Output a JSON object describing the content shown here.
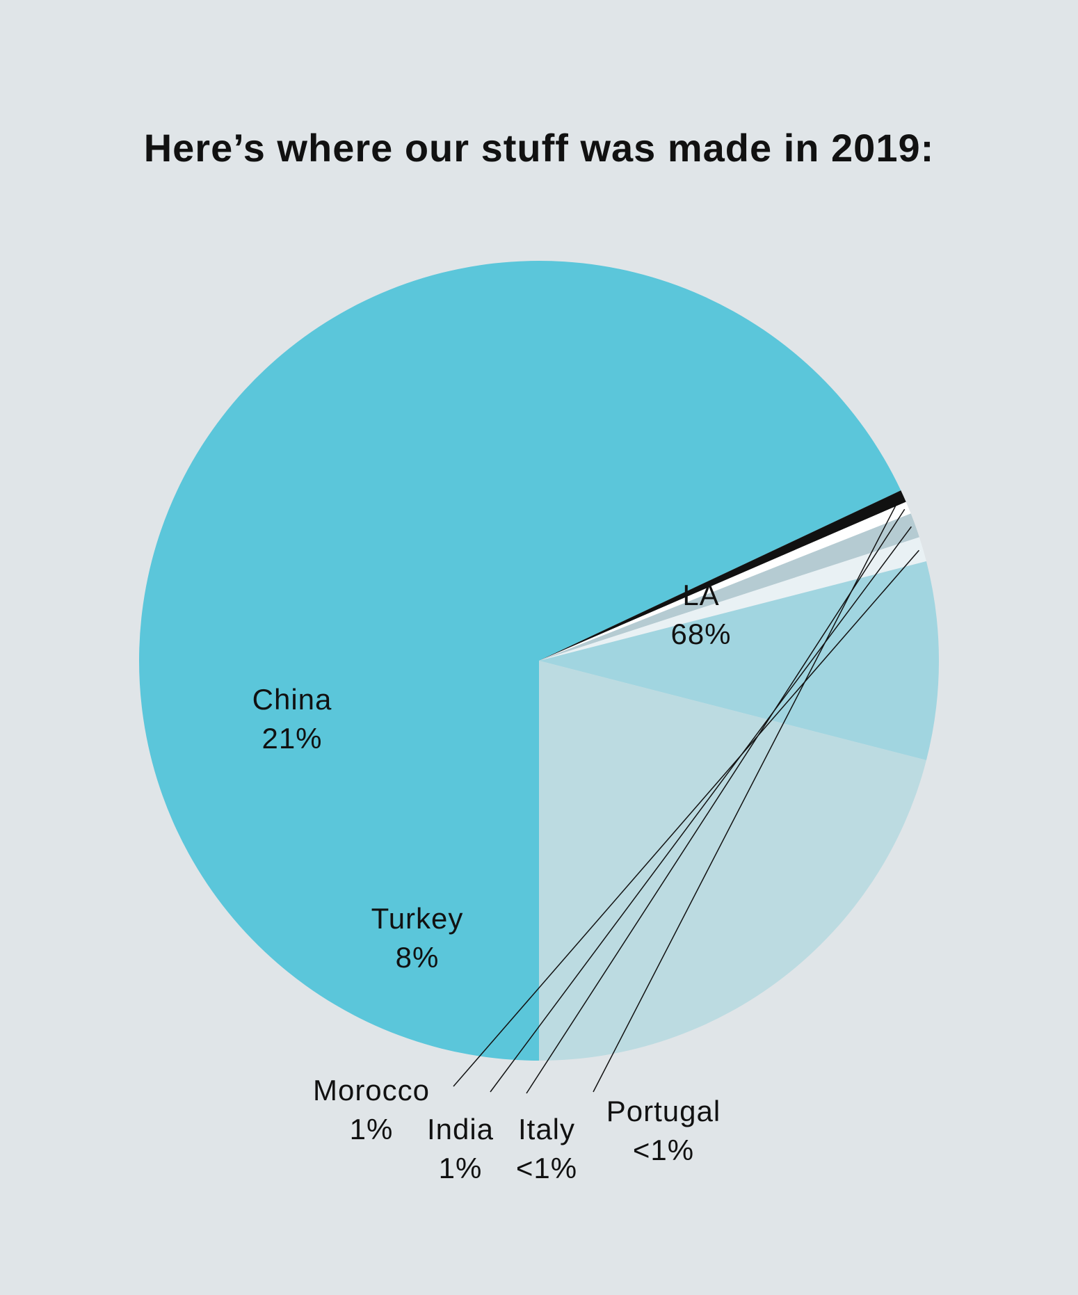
{
  "chart_data": {
    "type": "pie",
    "title": "Here’s where our stuff was made in 2019:",
    "slices": [
      {
        "name": "LA",
        "value": 68,
        "label": "68%",
        "color": "#5bc6da"
      },
      {
        "name": "Portugal",
        "value": 0.5,
        "label": "<1%",
        "color": "#111111"
      },
      {
        "name": "Italy",
        "value": 0.5,
        "label": "<1%",
        "color": "#ffffff"
      },
      {
        "name": "India",
        "value": 1,
        "label": "1%",
        "color": "#b5cbd2"
      },
      {
        "name": "Morocco",
        "value": 1,
        "label": "1%",
        "color": "#e9f1f4"
      },
      {
        "name": "Turkey",
        "value": 8,
        "label": "8%",
        "color": "#a1d5e0"
      },
      {
        "name": "China",
        "value": 21,
        "label": "21%",
        "color": "#bcdbe1"
      }
    ]
  }
}
